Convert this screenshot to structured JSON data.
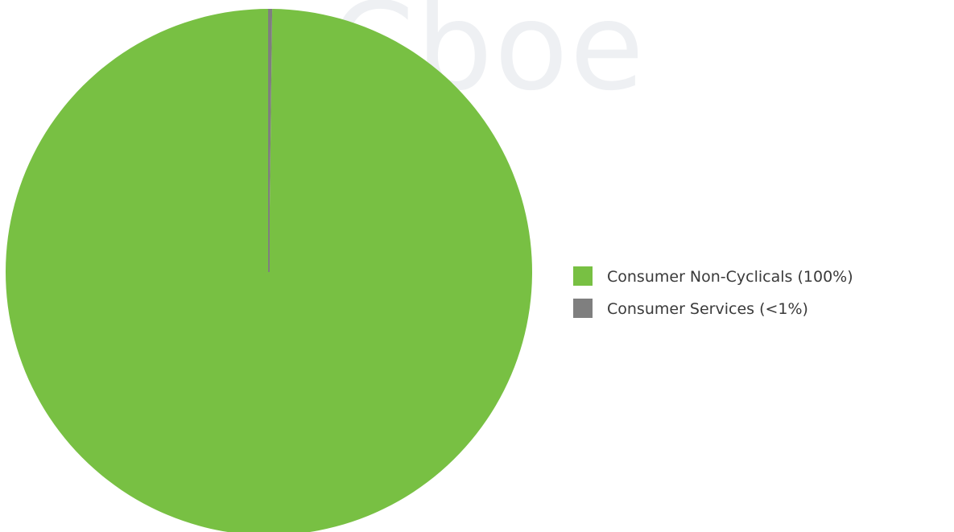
{
  "watermark": "Cboe",
  "chart_data": {
    "type": "pie",
    "title": "",
    "slices": [
      {
        "label": "Consumer Non-Cyclicals (100%)",
        "value": 99.8,
        "color": "#78c043"
      },
      {
        "label": "Consumer Services (<1%)",
        "value": 0.2,
        "color": "#7f7f7f"
      }
    ],
    "start_angle": "12 o'clock",
    "direction": "counterclockwise",
    "legend_position": "right"
  }
}
